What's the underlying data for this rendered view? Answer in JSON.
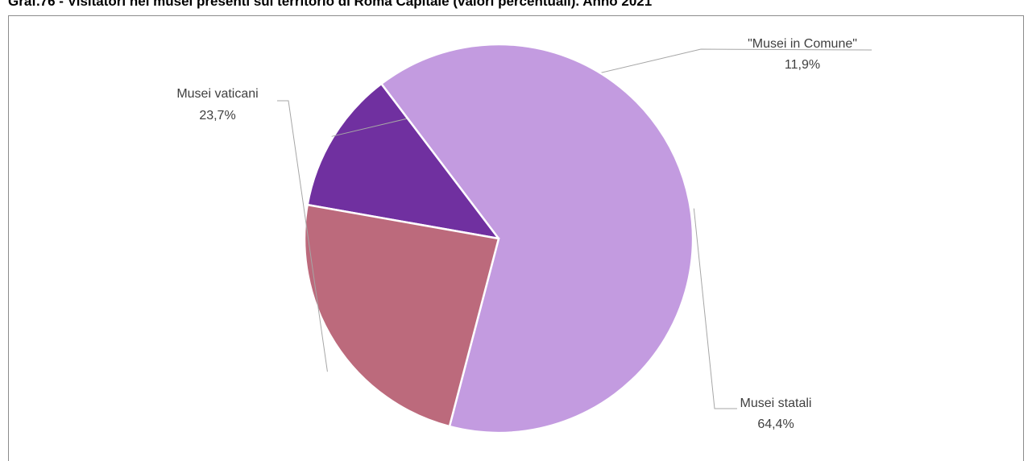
{
  "chart_data": {
    "type": "pie",
    "title": "Graf.76 - Visitatori nei musei presenti sul territorio di Roma Capitale (valori percentuali). Anno 2021",
    "slices": [
      {
        "name": "\"Musei in Comune\"",
        "value": 11.9,
        "value_label": "11,9%",
        "color": "#7030A0"
      },
      {
        "name": "Musei statali",
        "value": 64.4,
        "value_label": "64,4%",
        "color": "#C39BE0"
      },
      {
        "name": "Musei vaticani",
        "value": 23.7,
        "value_label": "23,7%",
        "color": "#BC6A7C"
      }
    ],
    "legend": "none",
    "data_labels": "outside-with-leader-lines"
  }
}
